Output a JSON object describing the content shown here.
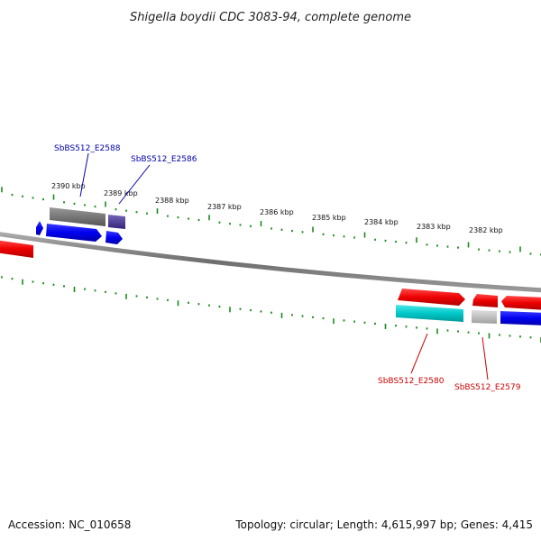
{
  "title": "Shigella boydii CDC 3083-94, complete genome",
  "footer": {
    "accession": "Accession: NC_010658",
    "summary": "Topology: circular; Length: 4,615,997 bp; Genes: 4,415"
  },
  "colors": {
    "tick": "#1a8a1a",
    "backbone": "#7a7a7a",
    "forward_gene": "#0000ee",
    "reverse_gene": "#ee0000",
    "grey_gene": "#777777",
    "purple_gene": "#554499",
    "cyan_gene": "#00c8c8",
    "light_grey_gene": "#c0c0c0",
    "label_blue": "#0000aa",
    "label_red": "#cc0000"
  },
  "scale_labels": [
    "2390 kbp",
    "2389 kbp",
    "2388 kbp",
    "2387 kbp",
    "2386 kbp",
    "2385 kbp",
    "2384 kbp",
    "2383 kbp",
    "2382 kbp"
  ],
  "gene_labels": [
    {
      "text": "SbBS512_E2588",
      "color": "blue"
    },
    {
      "text": "SbBS512_E2586",
      "color": "blue"
    },
    {
      "text": "SbBS512_E2580",
      "color": "red"
    },
    {
      "text": "SbBS512_E2579",
      "color": "red"
    }
  ]
}
